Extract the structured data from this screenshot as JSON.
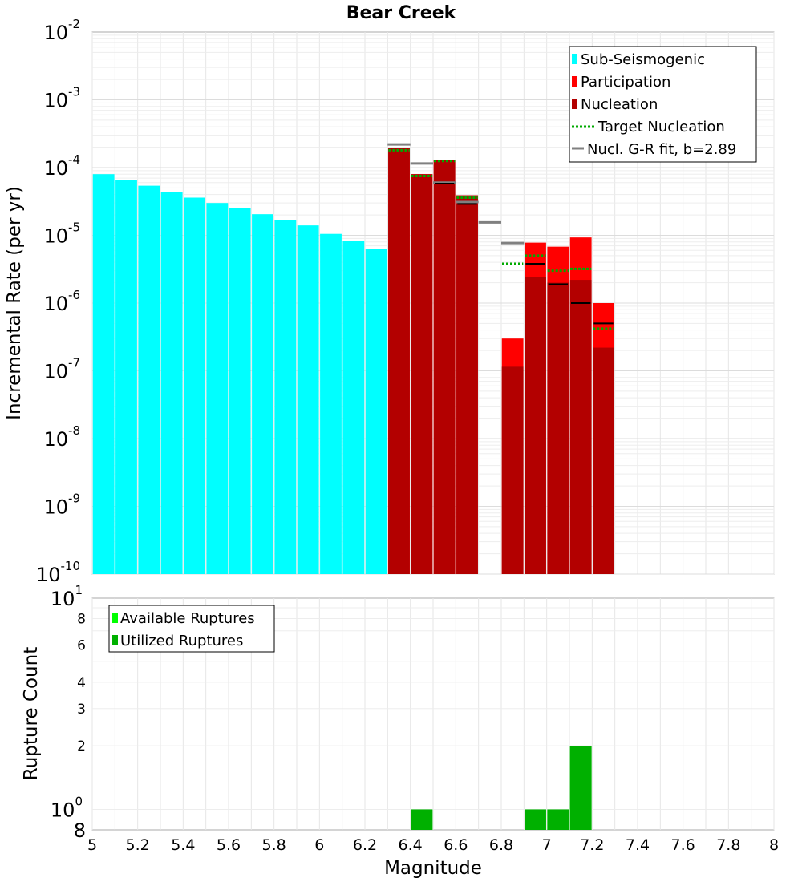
{
  "chart_data": [
    {
      "type": "bar",
      "title": "Bear Creek",
      "xlabel": "Magnitude",
      "ylabel": "Incremental Rate (per yr)",
      "xlim": [
        5,
        8
      ],
      "ylim": [
        1e-10,
        0.01
      ],
      "yscale": "log",
      "bin_width": 0.1,
      "y_tick_mantissa": "10",
      "y_tick_exponents": [
        "-10",
        "-9",
        "-8",
        "-7",
        "-6",
        "-5",
        "-4",
        "-3",
        "-2"
      ],
      "legend": [
        {
          "label": "Sub-Seismogenic",
          "color": "#00ffff",
          "style": "bar"
        },
        {
          "label": "Participation",
          "color": "#ff0000",
          "style": "bar"
        },
        {
          "label": "Nucleation",
          "color": "#b30000",
          "style": "bar"
        },
        {
          "label": "Target Nucleation",
          "color": "#00aa00",
          "style": "dotted"
        },
        {
          "label": "Nucl. G-R fit, b=2.89",
          "color": "#808080",
          "style": "line"
        }
      ],
      "series": [
        {
          "name": "Sub-Seismogenic",
          "x": [
            5.05,
            5.15,
            5.25,
            5.35,
            5.45,
            5.55,
            5.65,
            5.75,
            5.85,
            5.95,
            6.05,
            6.15,
            6.25
          ],
          "values": [
            8e-05,
            6.6e-05,
            5.4e-05,
            4.4e-05,
            3.6e-05,
            3e-05,
            2.5e-05,
            2.05e-05,
            1.7e-05,
            1.4e-05,
            1.05e-05,
            8.2e-06,
            6.3e-06
          ]
        },
        {
          "name": "Participation",
          "x": [
            6.35,
            6.45,
            6.55,
            6.65,
            6.85,
            6.95,
            7.05,
            7.15,
            7.25
          ],
          "values": [
            0.000195,
            8e-05,
            0.00013,
            3.9e-05,
            3e-07,
            7.8e-06,
            6.8e-06,
            9.3e-06,
            1e-06
          ]
        },
        {
          "name": "Nucleation",
          "x": [
            6.35,
            6.45,
            6.55,
            6.65,
            6.85,
            6.95,
            7.05,
            7.15,
            7.25
          ],
          "values": [
            0.000195,
            8e-05,
            0.00013,
            3.9e-05,
            1.15e-07,
            2.4e-06,
            2e-06,
            2.2e-06,
            2.2e-07
          ]
        },
        {
          "name": "Target Nucleation",
          "x": [
            6.35,
            6.45,
            6.55,
            6.65,
            6.85,
            6.95,
            7.05,
            7.15,
            7.25
          ],
          "values": [
            0.00018,
            7.5e-05,
            0.000125,
            3.6e-05,
            3.8e-06,
            5e-06,
            3e-06,
            3.2e-06,
            4.2e-07
          ]
        },
        {
          "name": "Nucleation (black markers)",
          "x": [
            6.55,
            6.65,
            6.95,
            7.05,
            7.15,
            7.25
          ],
          "values": [
            5.8e-05,
            2.9e-05,
            3.8e-06,
            1.9e-06,
            1e-06,
            5e-07
          ]
        },
        {
          "name": "Nucl. G-R fit, b=2.89",
          "x": [
            6.35,
            6.45,
            6.55,
            6.65,
            6.75,
            6.85
          ],
          "values": [
            0.00022,
            0.000115,
            6e-05,
            3.1e-05,
            1.55e-05,
            7.7e-06
          ]
        }
      ]
    },
    {
      "type": "bar",
      "xlabel": "Magnitude",
      "ylabel": "Rupture Count",
      "xlim": [
        5,
        8
      ],
      "ylim": [
        0.8,
        10
      ],
      "yscale": "log",
      "bin_width": 0.1,
      "x_ticks": [
        "5",
        "5.2",
        "5.4",
        "5.6",
        "5.8",
        "6",
        "6.2",
        "6.4",
        "6.6",
        "6.8",
        "7",
        "7.2",
        "7.4",
        "7.6",
        "7.8",
        "8"
      ],
      "y_ticks": [
        {
          "value": 8,
          "label": "8"
        },
        {
          "value": 6,
          "label": "6"
        },
        {
          "value": 4,
          "label": "4"
        },
        {
          "value": 3,
          "label": "3"
        },
        {
          "value": 2,
          "label": "2"
        }
      ],
      "y_major_mantissa": "10",
      "y_major_exponents": [
        "1",
        "0"
      ],
      "y_bottom_label": "8",
      "legend": [
        {
          "label": "Available Ruptures",
          "color": "#00ff00",
          "style": "bar"
        },
        {
          "label": "Utilized Ruptures",
          "color": "#00b000",
          "style": "bar"
        }
      ],
      "series": [
        {
          "name": "Available Ruptures",
          "x": [
            6.45,
            6.95,
            7.05,
            7.15
          ],
          "values": [
            1,
            1,
            1,
            2
          ]
        },
        {
          "name": "Utilized Ruptures",
          "x": [
            6.45,
            6.95,
            7.05,
            7.15
          ],
          "values": [
            1,
            1,
            1,
            2
          ]
        }
      ]
    }
  ]
}
